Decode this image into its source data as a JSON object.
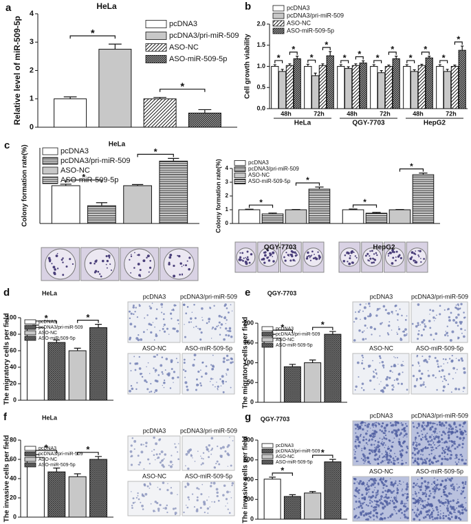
{
  "chart_data": [
    {
      "type": "bar",
      "panel": "a",
      "title": "HeLa",
      "ylabel": "Relative level of miR-509-5p",
      "ylim": [
        0,
        4
      ],
      "yticks": [
        0,
        1,
        2,
        3,
        4
      ],
      "series": [
        {
          "name": "pcDNA3",
          "color": "#ffffff",
          "pattern": "none",
          "values": [
            1.0
          ],
          "errors": [
            0.07
          ]
        },
        {
          "name": "pcDNA3/pri-miR-509",
          "color": "#c8c8c8",
          "pattern": "none",
          "values": [
            2.75
          ],
          "errors": [
            0.18
          ]
        },
        {
          "name": "ASO-NC",
          "color": "#000000",
          "pattern": "diagonal",
          "values": [
            1.0
          ],
          "errors": [
            0.05
          ]
        },
        {
          "name": "ASO-miR-509-5p",
          "color": "#000000",
          "pattern": "diagonal-dense",
          "values": [
            0.5
          ],
          "errors": [
            0.12
          ]
        }
      ],
      "significance": [
        "*",
        "*"
      ]
    },
    {
      "type": "bar",
      "panel": "b",
      "ylabel": "Cell growth viability",
      "categories": [
        "48h",
        "72h",
        "48h",
        "72h",
        "48h",
        "72h"
      ],
      "groups": [
        "HeLa",
        "QGY-7703",
        "HepG2"
      ],
      "ylim": [
        0,
        2
      ],
      "yticks": [
        {
          "value": 0,
          "label": "0.0"
        },
        0.5,
        {
          "value": 1,
          "label": "1.0"
        },
        1.5,
        {
          "value": 2,
          "label": "2.0"
        }
      ],
      "series": [
        {
          "name": "pcDNA3",
          "color": "#ffffff",
          "pattern": "none",
          "values": [
            1.0,
            1.0,
            1.0,
            1.0,
            1.0,
            1.0
          ],
          "errors": [
            0.04,
            0.05,
            0.04,
            0.04,
            0.04,
            0.04
          ]
        },
        {
          "name": "pcDNA3/pri-miR-509",
          "color": "#c8c8c8",
          "pattern": "none",
          "values": [
            0.88,
            0.78,
            0.95,
            0.85,
            0.88,
            0.88
          ],
          "errors": [
            0.05,
            0.06,
            0.04,
            0.05,
            0.04,
            0.05
          ]
        },
        {
          "name": "ASO-NC",
          "color": "#000000",
          "pattern": "diagonal",
          "values": [
            1.02,
            1.02,
            1.02,
            1.0,
            1.02,
            1.0
          ],
          "errors": [
            0.04,
            0.04,
            0.04,
            0.03,
            0.03,
            0.03
          ]
        },
        {
          "name": "ASO-miR-509-5p",
          "color": "#000000",
          "pattern": "diagonal-dense",
          "values": [
            1.18,
            1.25,
            1.08,
            1.18,
            1.2,
            1.38
          ],
          "errors": [
            0.06,
            0.1,
            0.05,
            0.06,
            0.04,
            0.1
          ]
        }
      ],
      "significance": [
        "*",
        "*",
        "*",
        "*",
        "*",
        "*",
        "*",
        "*",
        "*",
        "*",
        "*",
        "*"
      ]
    },
    {
      "type": "bar",
      "panel": "c",
      "title": "HeLa",
      "ylabel": "Colony formation rate(%)",
      "ylim": [
        0,
        2
      ],
      "series": [
        {
          "name": "pcDNA3",
          "color": "#ffffff",
          "pattern": "none",
          "values": [
            1.0
          ],
          "errors": [
            0.04
          ]
        },
        {
          "name": "pcDNA3/pri-miR-509",
          "color": "#000000",
          "pattern": "horizontal",
          "values": [
            0.47
          ],
          "errors": [
            0.08
          ]
        },
        {
          "name": "ASO-NC",
          "color": "#c8c8c8",
          "pattern": "none",
          "values": [
            1.0
          ],
          "errors": [
            0.03
          ]
        },
        {
          "name": "ASO-miR-509-5p",
          "color": "#000000",
          "pattern": "horizontal",
          "values": [
            1.65
          ],
          "errors": [
            0.07
          ]
        }
      ],
      "significance": [
        "*",
        "*"
      ]
    },
    {
      "type": "bar",
      "ylabel": "Colony formation rate(%)",
      "categories": [
        "QGY-7703",
        "HepG2"
      ],
      "ylim": [
        0,
        4
      ],
      "yticks": [
        0,
        1,
        2,
        3,
        4
      ],
      "series": [
        {
          "name": "pcDNA3",
          "color": "#ffffff",
          "pattern": "none",
          "values": [
            1.0,
            1.0
          ],
          "errors": [
            0.04,
            0.05
          ]
        },
        {
          "name": "pcDNA3/pri-miR-509",
          "color": "#000000",
          "pattern": "horizontal",
          "values": [
            0.7,
            0.75
          ],
          "errors": [
            0.06,
            0.06
          ]
        },
        {
          "name": "ASO-NC",
          "color": "#c8c8c8",
          "pattern": "none",
          "values": [
            1.0,
            1.0
          ],
          "errors": [
            0.02,
            0.02
          ]
        },
        {
          "name": "ASO-miR-509-5p",
          "color": "#000000",
          "pattern": "horizontal",
          "values": [
            2.5,
            3.55
          ],
          "errors": [
            0.15,
            0.12
          ]
        }
      ],
      "significance": [
        "*",
        "*",
        "*",
        "*"
      ]
    },
    {
      "type": "bar",
      "panel": "d",
      "title": "HeLa",
      "ylabel": "The migratory cells per field",
      "ylim": [
        0,
        100
      ],
      "yticks": [
        0,
        20,
        40,
        60,
        80,
        100
      ],
      "series": [
        {
          "name": "pcDNA3",
          "color": "#ffffff",
          "pattern": "none",
          "values": [
            88
          ],
          "errors": [
            3
          ]
        },
        {
          "name": "pcDNA3/pri-miR-509",
          "color": "#333333",
          "pattern": "cross",
          "values": [
            70
          ],
          "errors": [
            3
          ]
        },
        {
          "name": "ASO-NC",
          "color": "#c8c8c8",
          "pattern": "none",
          "values": [
            60
          ],
          "errors": [
            3
          ]
        },
        {
          "name": "ASO-miR-509-5p",
          "color": "#333333",
          "pattern": "cross",
          "values": [
            88
          ],
          "errors": [
            4
          ]
        }
      ],
      "significance": [
        "*",
        "*"
      ],
      "image_labels": [
        "pcDNA3",
        "pcDNA3/pri-miR-509",
        "ASO-NC",
        "ASO-miR-509-5p"
      ]
    },
    {
      "type": "bar",
      "panel": "e",
      "title": "QGY-7703",
      "ylabel": "The migratory cells per field",
      "ylim": [
        0,
        200
      ],
      "yticks": [
        0,
        50,
        100,
        150,
        200
      ],
      "series": [
        {
          "name": "pcDNA3",
          "color": "#ffffff",
          "pattern": "none",
          "values": [
            162
          ],
          "errors": [
            10
          ]
        },
        {
          "name": "pcDNA3/pri-miR-509",
          "color": "#333333",
          "pattern": "cross",
          "values": [
            90
          ],
          "errors": [
            6
          ]
        },
        {
          "name": "ASO-NC",
          "color": "#c8c8c8",
          "pattern": "none",
          "values": [
            100
          ],
          "errors": [
            7
          ]
        },
        {
          "name": "ASO-miR-509-5p",
          "color": "#333333",
          "pattern": "cross",
          "values": [
            172
          ],
          "errors": [
            7
          ]
        }
      ],
      "significance": [
        "*",
        "*"
      ],
      "image_labels": [
        "pcDNA3",
        "pcDNA3/pri-miR-509",
        "ASO-NC",
        "ASO-miR-509-5p"
      ]
    },
    {
      "type": "bar",
      "panel": "f",
      "title": "HeLa",
      "ylabel": "The invasive cells per field",
      "ylim": [
        0,
        80
      ],
      "yticks": [
        0,
        20,
        40,
        60,
        80
      ],
      "series": [
        {
          "name": "pcDNA3",
          "color": "#ffffff",
          "pattern": "none",
          "values": [
            62
          ],
          "errors": [
            3
          ]
        },
        {
          "name": "pcDNA3/pri-miR-509",
          "color": "#333333",
          "pattern": "cross",
          "values": [
            47
          ],
          "errors": [
            4
          ]
        },
        {
          "name": "ASO-NC",
          "color": "#c8c8c8",
          "pattern": "none",
          "values": [
            42
          ],
          "errors": [
            3
          ]
        },
        {
          "name": "ASO-miR-509-5p",
          "color": "#333333",
          "pattern": "cross",
          "values": [
            60
          ],
          "errors": [
            3
          ]
        }
      ],
      "significance": [
        "*",
        "*"
      ],
      "image_labels": [
        "pcDNA3",
        "pcDNA3/pri-miR-509",
        "ASO-NC",
        "ASO-miR-509-5p"
      ]
    },
    {
      "type": "bar",
      "panel": "g",
      "title": "QGY-7703",
      "ylabel": "The invasive cells per field",
      "ylim": [
        0,
        800
      ],
      "yticks": [
        0,
        200,
        400,
        600,
        800
      ],
      "series": [
        {
          "name": "pcDNA3",
          "color": "#ffffff",
          "pattern": "none",
          "values": [
            405
          ],
          "errors": [
            20
          ]
        },
        {
          "name": "pcDNA3/pri-miR-509",
          "color": "#333333",
          "pattern": "cross",
          "values": [
            230
          ],
          "errors": [
            18
          ]
        },
        {
          "name": "ASO-NC",
          "color": "#c8c8c8",
          "pattern": "none",
          "values": [
            265
          ],
          "errors": [
            15
          ]
        },
        {
          "name": "ASO-miR-509-5p",
          "color": "#333333",
          "pattern": "cross",
          "values": [
            580
          ],
          "errors": [
            25
          ]
        }
      ],
      "significance": [
        "*",
        "*"
      ],
      "image_labels": [
        "pcDNA3",
        "pcDNA3/pri-miR-509",
        "ASO-NC",
        "ASO-miR-509-5p"
      ]
    }
  ]
}
